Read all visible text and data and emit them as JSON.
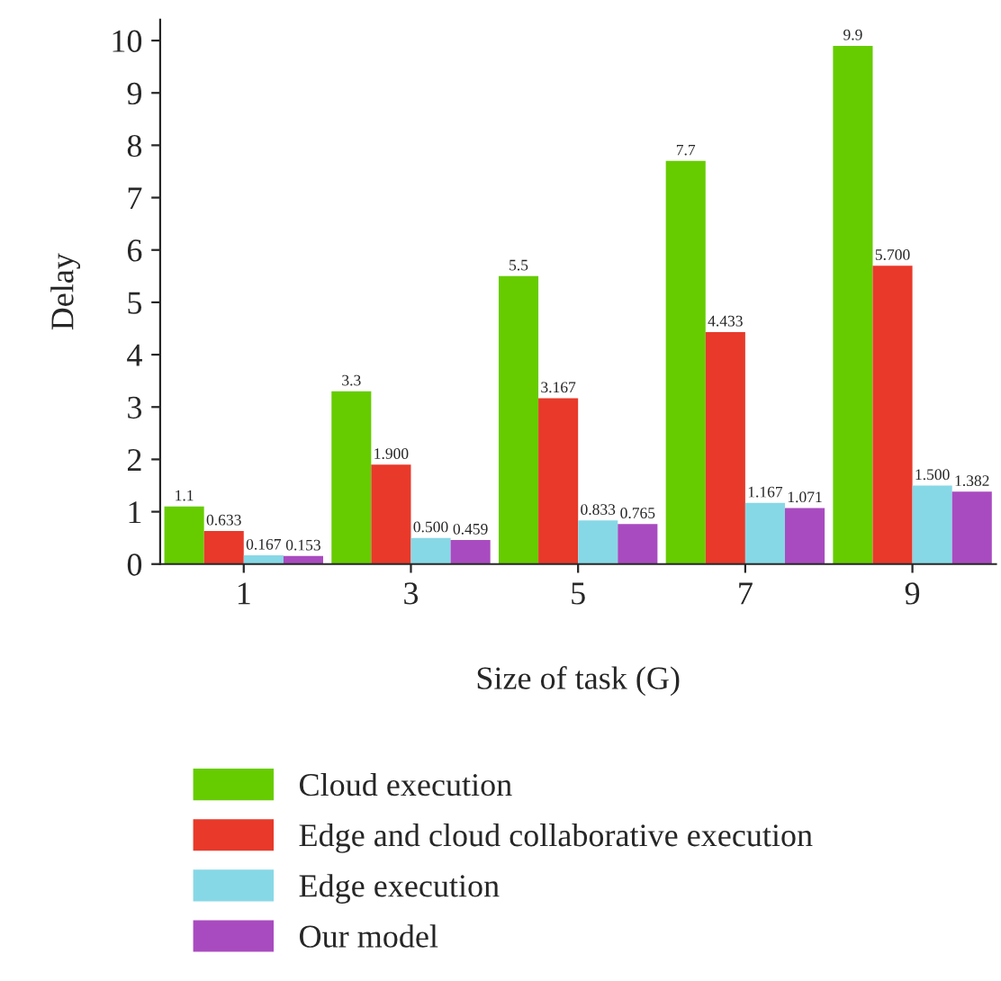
{
  "chart_data": {
    "type": "bar",
    "xlabel": "Size of task (G)",
    "ylabel": "Delay",
    "categories": [
      "1",
      "3",
      "5",
      "7",
      "9"
    ],
    "series": [
      {
        "name": "Cloud execution",
        "color": "#66cc00",
        "values": [
          1.1,
          3.3,
          5.5,
          7.7,
          9.9
        ],
        "value_labels": [
          "1.1",
          "3.3",
          "5.5",
          "7.7",
          "9.9"
        ]
      },
      {
        "name": "Edge and cloud collaborative execution",
        "color": "#e8392a",
        "values": [
          0.633,
          1.9,
          3.167,
          4.433,
          5.7
        ],
        "value_labels": [
          "0.633",
          "1.900",
          "3.167",
          "4.433",
          "5.700"
        ]
      },
      {
        "name": "Edge execution",
        "color": "#87d8e6",
        "values": [
          0.167,
          0.5,
          0.833,
          1.167,
          1.5
        ],
        "value_labels": [
          "0.167",
          "0.500",
          "0.833",
          "1.167",
          "1.500"
        ]
      },
      {
        "name": "Our model",
        "color": "#a94bc0",
        "values": [
          0.153,
          0.459,
          0.765,
          1.071,
          1.382
        ],
        "value_labels": [
          "0.153",
          "0.459",
          "0.765",
          "1.071",
          "1.382"
        ]
      }
    ],
    "ylim": [
      0,
      10.4
    ],
    "yticks": [
      0,
      1,
      2,
      3,
      4,
      5,
      6,
      7,
      8,
      9,
      10
    ],
    "grid": false,
    "legend": "bottom"
  }
}
